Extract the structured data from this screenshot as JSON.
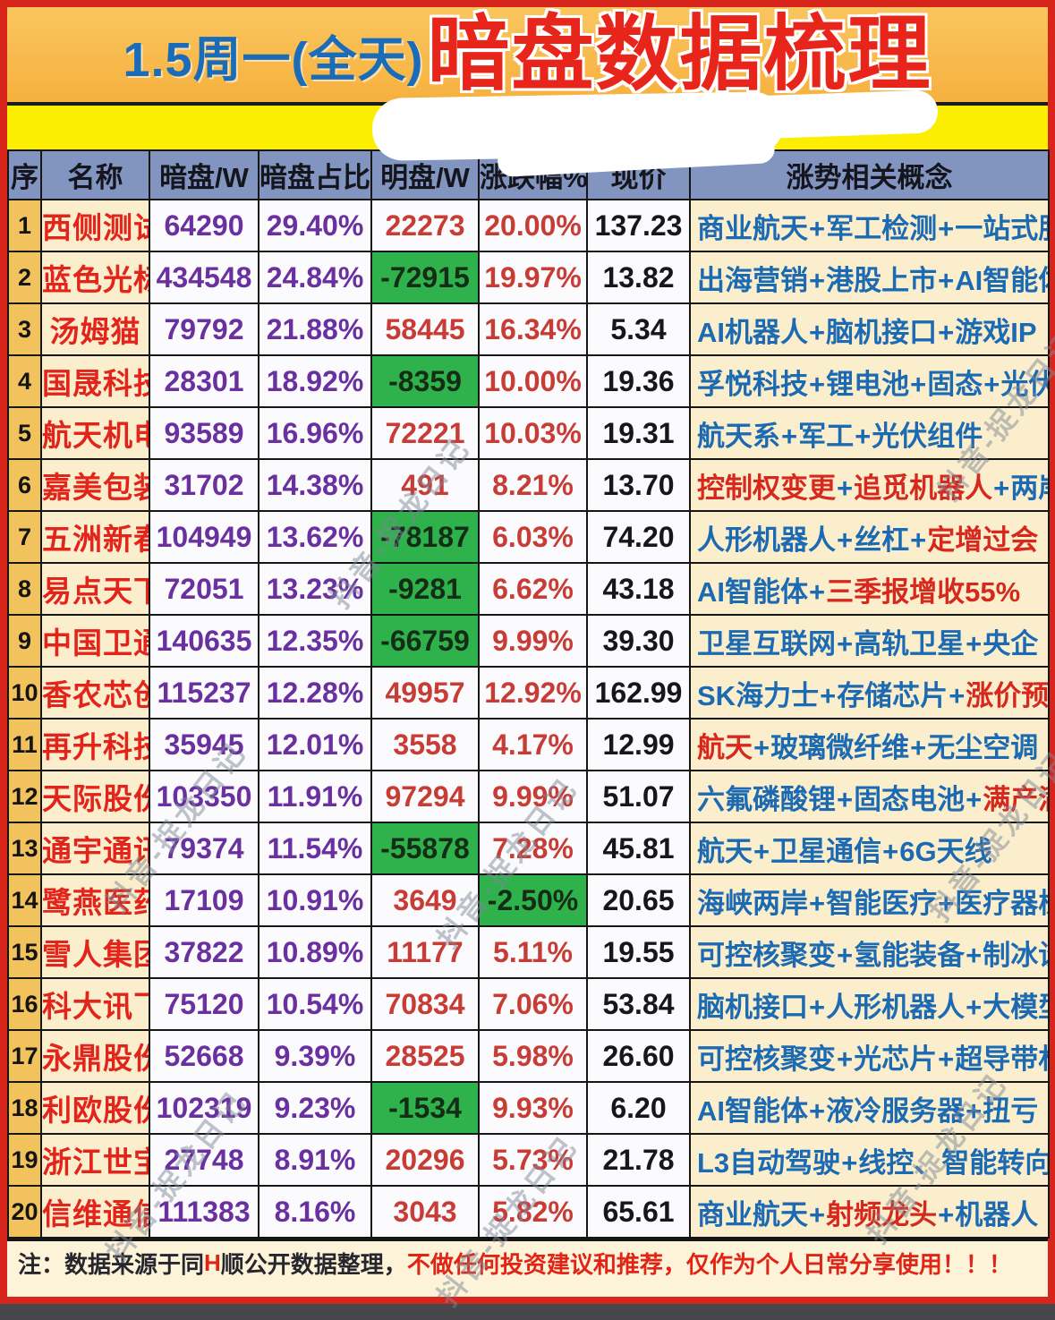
{
  "page": {
    "title_date": "1.5周一(全天)",
    "title_main": "暗盘数据梳理",
    "watermark_text": "抖音-捉龙日记"
  },
  "table": {
    "columns": [
      "序",
      "名称",
      "暗盘/W",
      "暗盘占比",
      "明盘/W",
      "涨跌幅%",
      "现价",
      "涨势相关概念"
    ],
    "rows": [
      {
        "seq": "1",
        "name": "西侧测试",
        "dark": "64290",
        "dark_pct": "29.40%",
        "open": "22273",
        "open_neg": false,
        "chg": "20.00%",
        "chg_neg": false,
        "price": "137.23",
        "concepts": [
          {
            "t": "商业航天",
            "c": "blue"
          },
          {
            "t": "军工检测",
            "c": "blue"
          },
          {
            "t": "一站式服务",
            "c": "blue"
          }
        ]
      },
      {
        "seq": "2",
        "name": "蓝色光标",
        "dark": "434548",
        "dark_pct": "24.84%",
        "open": "-72915",
        "open_neg": true,
        "chg": "19.97%",
        "chg_neg": false,
        "price": "13.82",
        "concepts": [
          {
            "t": "出海营销",
            "c": "blue"
          },
          {
            "t": "港股上市",
            "c": "blue"
          },
          {
            "t": "AI智能体",
            "c": "blue"
          }
        ]
      },
      {
        "seq": "3",
        "name": "汤姆猫",
        "dark": "79792",
        "dark_pct": "21.88%",
        "open": "58445",
        "open_neg": false,
        "chg": "16.34%",
        "chg_neg": false,
        "price": "5.34",
        "concepts": [
          {
            "t": "AI机器人",
            "c": "blue"
          },
          {
            "t": "脑机接口",
            "c": "blue"
          },
          {
            "t": "游戏IP",
            "c": "blue"
          }
        ]
      },
      {
        "seq": "4",
        "name": "国晟科技",
        "dark": "28301",
        "dark_pct": "18.92%",
        "open": "-8359",
        "open_neg": true,
        "chg": "10.00%",
        "chg_neg": false,
        "price": "19.36",
        "concepts": [
          {
            "t": "孚悦科技",
            "c": "blue"
          },
          {
            "t": "锂电池",
            "c": "blue"
          },
          {
            "t": "固态",
            "c": "blue"
          },
          {
            "t": "光伏",
            "c": "blue"
          }
        ]
      },
      {
        "seq": "5",
        "name": "航天机电",
        "dark": "93589",
        "dark_pct": "16.96%",
        "open": "72221",
        "open_neg": false,
        "chg": "10.03%",
        "chg_neg": false,
        "price": "19.31",
        "concepts": [
          {
            "t": "航天系",
            "c": "blue"
          },
          {
            "t": "军工",
            "c": "blue"
          },
          {
            "t": "光伏组件",
            "c": "blue"
          }
        ]
      },
      {
        "seq": "6",
        "name": "嘉美包装",
        "dark": "31702",
        "dark_pct": "14.38%",
        "open": "491",
        "open_neg": false,
        "chg": "8.21%",
        "chg_neg": false,
        "price": "13.70",
        "concepts": [
          {
            "t": "控制权变更",
            "c": "red"
          },
          {
            "t": "追觅机器人",
            "c": "red"
          },
          {
            "t": "两岸",
            "c": "blue"
          }
        ]
      },
      {
        "seq": "7",
        "name": "五洲新春",
        "dark": "104949",
        "dark_pct": "13.62%",
        "open": "-78187",
        "open_neg": true,
        "chg": "6.03%",
        "chg_neg": false,
        "price": "74.20",
        "concepts": [
          {
            "t": "人形机器人",
            "c": "blue"
          },
          {
            "t": "丝杠",
            "c": "blue"
          },
          {
            "t": "定增过会",
            "c": "red"
          }
        ]
      },
      {
        "seq": "8",
        "name": "易点天下",
        "dark": "72051",
        "dark_pct": "13.23%",
        "open": "-9281",
        "open_neg": true,
        "chg": "6.62%",
        "chg_neg": false,
        "price": "43.18",
        "concepts": [
          {
            "t": "AI智能体",
            "c": "blue"
          },
          {
            "t": "三季报增收55%",
            "c": "red"
          }
        ]
      },
      {
        "seq": "9",
        "name": "中国卫通",
        "dark": "140635",
        "dark_pct": "12.35%",
        "open": "-66759",
        "open_neg": true,
        "chg": "9.99%",
        "chg_neg": false,
        "price": "39.30",
        "concepts": [
          {
            "t": "卫星互联网",
            "c": "blue"
          },
          {
            "t": "高轨卫星",
            "c": "blue"
          },
          {
            "t": "央企",
            "c": "blue"
          }
        ]
      },
      {
        "seq": "10",
        "name": "香农芯创",
        "dark": "115237",
        "dark_pct": "12.28%",
        "open": "49957",
        "open_neg": false,
        "chg": "12.92%",
        "chg_neg": false,
        "price": "162.99",
        "concepts": [
          {
            "t": "SK海力士",
            "c": "blue"
          },
          {
            "t": "存储芯片",
            "c": "blue"
          },
          {
            "t": "涨价预期",
            "c": "red"
          }
        ]
      },
      {
        "seq": "11",
        "name": "再升科技",
        "dark": "35945",
        "dark_pct": "12.01%",
        "open": "3558",
        "open_neg": false,
        "chg": "4.17%",
        "chg_neg": false,
        "price": "12.99",
        "concepts": [
          {
            "t": "航天",
            "c": "red"
          },
          {
            "t": "玻璃微纤维",
            "c": "blue"
          },
          {
            "t": "无尘空调",
            "c": "blue"
          }
        ]
      },
      {
        "seq": "12",
        "name": "天际股份",
        "dark": "103350",
        "dark_pct": "11.91%",
        "open": "97294",
        "open_neg": false,
        "chg": "9.99%",
        "chg_neg": false,
        "price": "51.07",
        "concepts": [
          {
            "t": "六氟磷酸锂",
            "c": "blue"
          },
          {
            "t": "固态电池",
            "c": "blue"
          },
          {
            "t": "满产满销",
            "c": "red"
          }
        ]
      },
      {
        "seq": "13",
        "name": "通宇通讯",
        "dark": "79374",
        "dark_pct": "11.54%",
        "open": "-55878",
        "open_neg": true,
        "chg": "7.28%",
        "chg_neg": false,
        "price": "45.81",
        "concepts": [
          {
            "t": "航天",
            "c": "blue"
          },
          {
            "t": "卫星通信",
            "c": "blue"
          },
          {
            "t": "6G天线",
            "c": "blue"
          }
        ]
      },
      {
        "seq": "14",
        "name": "鹭燕医药",
        "dark": "17109",
        "dark_pct": "10.91%",
        "open": "3649",
        "open_neg": false,
        "chg": "-2.50%",
        "chg_neg": true,
        "price": "20.65",
        "concepts": [
          {
            "t": "海峡两岸",
            "c": "blue"
          },
          {
            "t": "智能医疗",
            "c": "blue"
          },
          {
            "t": "医疗器械",
            "c": "blue"
          }
        ]
      },
      {
        "seq": "15",
        "name": "雪人集团",
        "dark": "37822",
        "dark_pct": "10.89%",
        "open": "11177",
        "open_neg": false,
        "chg": "5.11%",
        "chg_neg": false,
        "price": "19.55",
        "concepts": [
          {
            "t": "可控核聚变",
            "c": "blue"
          },
          {
            "t": "氢能装备",
            "c": "blue"
          },
          {
            "t": "制冰设备",
            "c": "blue"
          }
        ]
      },
      {
        "seq": "16",
        "name": "科大讯飞",
        "dark": "75120",
        "dark_pct": "10.54%",
        "open": "70834",
        "open_neg": false,
        "chg": "7.06%",
        "chg_neg": false,
        "price": "53.84",
        "concepts": [
          {
            "t": "脑机接口",
            "c": "blue"
          },
          {
            "t": "人形机器人",
            "c": "blue"
          },
          {
            "t": "大模型",
            "c": "blue"
          }
        ]
      },
      {
        "seq": "17",
        "name": "永鼎股份",
        "dark": "52668",
        "dark_pct": "9.39%",
        "open": "28525",
        "open_neg": false,
        "chg": "5.98%",
        "chg_neg": false,
        "price": "26.60",
        "concepts": [
          {
            "t": "可控核聚变",
            "c": "blue"
          },
          {
            "t": "光芯片",
            "c": "blue"
          },
          {
            "t": "超导带材",
            "c": "blue"
          }
        ]
      },
      {
        "seq": "18",
        "name": "利欧股份",
        "dark": "102319",
        "dark_pct": "9.23%",
        "open": "-1534",
        "open_neg": true,
        "chg": "9.93%",
        "chg_neg": false,
        "price": "6.20",
        "concepts": [
          {
            "t": "AI智能体",
            "c": "blue"
          },
          {
            "t": "液冷服务器",
            "c": "blue"
          },
          {
            "t": "扭亏",
            "c": "blue"
          }
        ]
      },
      {
        "seq": "19",
        "name": "浙江世宝",
        "dark": "27748",
        "dark_pct": "8.91%",
        "open": "20296",
        "open_neg": false,
        "chg": "5.73%",
        "chg_neg": false,
        "price": "21.78",
        "concepts": [
          {
            "t": "L3自动驾驶",
            "c": "blue"
          },
          {
            "t": "线控、智能转向",
            "c": "blue"
          }
        ]
      },
      {
        "seq": "20",
        "name": "信维通信",
        "dark": "111383",
        "dark_pct": "8.16%",
        "open": "3043",
        "open_neg": false,
        "chg": "5.82%",
        "chg_neg": false,
        "price": "65.61",
        "concepts": [
          {
            "t": "商业航天",
            "c": "blue"
          },
          {
            "t": "射频龙头",
            "c": "red"
          },
          {
            "t": "机器人",
            "c": "blue"
          }
        ]
      }
    ]
  },
  "footer": {
    "segments": [
      {
        "t": "注：数据来源于同",
        "c": "dark"
      },
      {
        "t": "H",
        "c": "red"
      },
      {
        "t": "顺公开数据整理，",
        "c": "dark"
      },
      {
        "t": "不做任何投资建议和推荐，仅作为个人日常分享使用！！！",
        "c": "red"
      }
    ]
  },
  "colors": {
    "frame_red": "#d8251b",
    "concept_blue": "#1c6ab2",
    "concept_red": "#d6281c",
    "value_purple": "#6a30a0",
    "value_red": "#c83c36",
    "negative_green_bg": "#2fb14b",
    "seq_gold": "#f2c35c",
    "name_cream": "#fbeecd",
    "header_bluegray": "#8295c1",
    "yellow_band": "#fcee00"
  }
}
